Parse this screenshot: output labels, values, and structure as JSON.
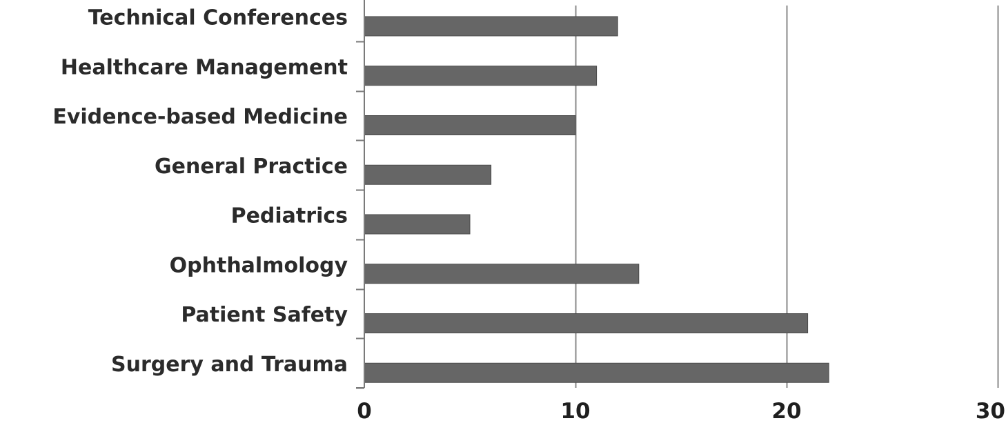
{
  "chart_data": {
    "type": "bar",
    "orientation": "horizontal",
    "categories": [
      "Technical Conferences",
      "Healthcare Management",
      "Evidence-based Medicine",
      "General Practice",
      "Pediatrics",
      "Ophthalmology",
      "Patient Safety",
      "Surgery and Trauma"
    ],
    "values": [
      12,
      11,
      10,
      6,
      5,
      13,
      21,
      22
    ],
    "xlim": [
      0,
      30
    ],
    "xticks": [
      "0",
      "10",
      "20",
      "30"
    ],
    "grid": "vertical",
    "bar_color": "#666666",
    "grid_color": "#8a8a8a",
    "legend": "none"
  }
}
